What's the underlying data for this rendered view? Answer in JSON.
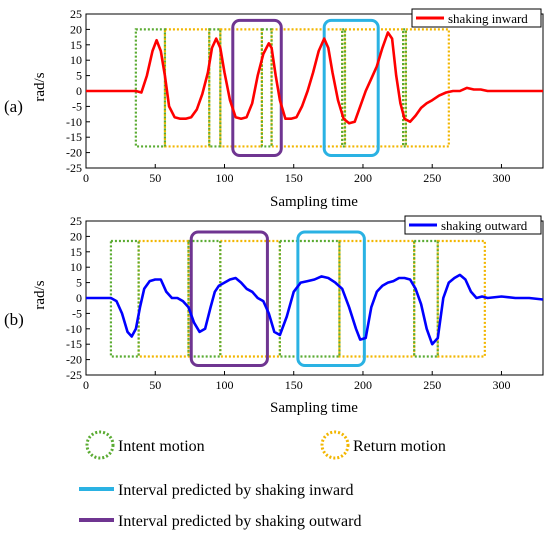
{
  "chart_data": [
    {
      "type": "line",
      "panel_label": "(a)",
      "xlabel": "Sampling time",
      "ylabel": "rad/s",
      "xlim": [
        0,
        330
      ],
      "ylim": [
        -25,
        25
      ],
      "xticks": [
        0,
        50,
        100,
        150,
        200,
        250,
        300
      ],
      "yticks": [
        -25,
        -20,
        -15,
        -10,
        -5,
        0,
        5,
        10,
        15,
        20,
        25
      ],
      "series": [
        {
          "name": "shaking inward",
          "color": "#ff0000",
          "x": [
            0,
            20,
            30,
            36,
            40,
            44,
            48,
            51,
            54,
            57,
            60,
            64,
            68,
            72,
            76,
            80,
            84,
            88,
            91,
            94,
            97,
            100,
            104,
            108,
            112,
            116,
            120,
            124,
            128,
            132,
            134,
            137,
            140,
            144,
            148,
            152,
            156,
            160,
            164,
            168,
            172,
            175,
            178,
            182,
            186,
            190,
            194,
            198,
            202,
            206,
            210,
            214,
            218,
            221,
            224,
            227,
            230,
            234,
            238,
            242,
            246,
            250,
            255,
            260,
            265,
            270,
            275,
            280,
            285,
            290,
            300,
            310,
            320,
            330
          ],
          "y": [
            0,
            0,
            0,
            0,
            -0.5,
            5,
            13,
            16.5,
            13,
            5,
            -5,
            -8.5,
            -9,
            -9,
            -8.5,
            -6,
            -1,
            6,
            14,
            17,
            14,
            6,
            -3,
            -8.5,
            -9,
            -8.5,
            -4,
            5,
            12,
            15.5,
            14,
            5,
            -3,
            -9,
            -9,
            -8.5,
            -5,
            0,
            6,
            13,
            17,
            14,
            6,
            -3,
            -9,
            -10.5,
            -10,
            -5,
            0,
            4,
            8,
            14,
            19,
            17,
            5,
            -4,
            -9,
            -10,
            -8,
            -5.5,
            -4,
            -3,
            -1.5,
            -0.5,
            0,
            0,
            1,
            0.5,
            0.5,
            0,
            0,
            0,
            0,
            0
          ]
        }
      ],
      "legend": {
        "label": "shaking inward",
        "placement": "top-right"
      }
    },
    {
      "type": "line",
      "panel_label": "(b)",
      "xlabel": "Sampling time",
      "ylabel": "rad/s",
      "xlim": [
        0,
        330
      ],
      "ylim": [
        -25,
        25
      ],
      "xticks": [
        0,
        50,
        100,
        150,
        200,
        250,
        300
      ],
      "yticks": [
        -25,
        -20,
        -15,
        -10,
        -5,
        0,
        5,
        10,
        15,
        20,
        25
      ],
      "series": [
        {
          "name": "shaking outward",
          "color": "#0000ff",
          "x": [
            0,
            10,
            18,
            22,
            26,
            30,
            33,
            36,
            39,
            42,
            46,
            50,
            54,
            58,
            62,
            66,
            70,
            74,
            78,
            82,
            86,
            90,
            93,
            96,
            100,
            104,
            108,
            112,
            116,
            120,
            124,
            128,
            132,
            136,
            140,
            145,
            150,
            155,
            160,
            165,
            170,
            175,
            180,
            185,
            190,
            195,
            198,
            202,
            206,
            210,
            214,
            218,
            222,
            226,
            230,
            234,
            238,
            242,
            246,
            250,
            254,
            258,
            262,
            266,
            270,
            274,
            278,
            282,
            286,
            290,
            300,
            310,
            320,
            330
          ],
          "y": [
            0,
            0,
            0,
            -1,
            -5,
            -11,
            -12.5,
            -10,
            -3,
            3,
            5.5,
            6,
            6,
            2,
            0,
            0,
            -1,
            -3,
            -8,
            -11,
            -10,
            -3,
            2,
            4,
            5,
            6,
            6.5,
            5,
            3,
            2,
            0,
            -1,
            -5,
            -11,
            -12,
            -6,
            2,
            5,
            5.5,
            6,
            7,
            6.5,
            5,
            3,
            -3,
            -10,
            -13.5,
            -13,
            -3,
            2,
            4,
            5,
            5.5,
            6.5,
            6.5,
            6,
            3,
            -2,
            -10,
            -15,
            -13,
            0,
            5,
            6.5,
            7.5,
            6,
            2,
            0,
            0.5,
            0,
            0.5,
            0,
            0,
            -0.5
          ]
        }
      ],
      "legend": {
        "label": "shaking outward",
        "placement": "top-right"
      }
    }
  ],
  "intervals": {
    "a": {
      "intent": [
        [
          36,
          57
        ],
        [
          89,
          97
        ],
        [
          127,
          134
        ],
        [
          185,
          187
        ],
        [
          229,
          231
        ]
      ],
      "return": [
        [
          57,
          89
        ],
        [
          97,
          127
        ],
        [
          134,
          185
        ],
        [
          187,
          229
        ],
        [
          231,
          262
        ]
      ],
      "pred_inward": [
        [
          172,
          211
        ]
      ],
      "pred_outward": [
        [
          106,
          141
        ]
      ],
      "y_range": [
        -18,
        20
      ]
    },
    "b": {
      "intent": [
        [
          18,
          38
        ],
        [
          74,
          97
        ],
        [
          140,
          183
        ],
        [
          237,
          254
        ]
      ],
      "return": [
        [
          38,
          74
        ],
        [
          97,
          140
        ],
        [
          183,
          237
        ],
        [
          254,
          288
        ]
      ],
      "pred_inward": [
        [
          153,
          201
        ]
      ],
      "pred_outward": [
        [
          76,
          131
        ]
      ],
      "y_range": [
        -19,
        18.5
      ]
    }
  },
  "legend_bottom": {
    "intent": "Intent motion",
    "return": "Return motion",
    "pred_inward": "Interval predicted by shaking inward",
    "pred_outward": "Interval predicted by shaking outward"
  },
  "colors": {
    "intent": "#5aab32",
    "return": "#f2b600",
    "pred_inward": "#2ab2e3",
    "pred_outward": "#6f3591",
    "inward_line": "#ff0000",
    "outward_line": "#0000ff"
  }
}
